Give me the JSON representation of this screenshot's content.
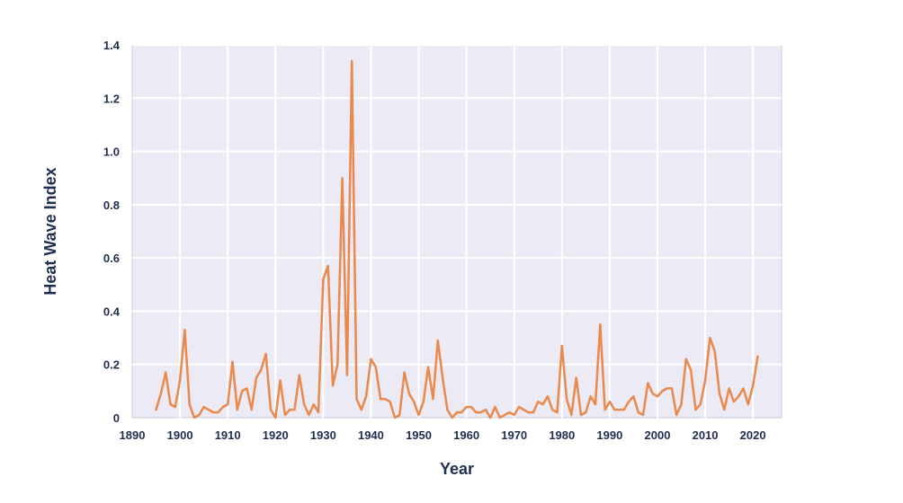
{
  "colors": {
    "plot_background": "#ebeaf5",
    "grid": "#ffffff",
    "plot_border": "#c9c8d6",
    "line": "#e9894c",
    "text": "#1f2d4f"
  },
  "chart_data": {
    "type": "line",
    "title": "",
    "xlabel": "Year",
    "ylabel": "Heat Wave Index",
    "xlim": [
      1890,
      2026
    ],
    "ylim": [
      0,
      1.4
    ],
    "xticks": [
      1890,
      1900,
      1910,
      1920,
      1930,
      1940,
      1950,
      1960,
      1970,
      1980,
      1990,
      2000,
      2010,
      2020
    ],
    "xtick_labels": [
      "1890",
      "1900",
      "1910",
      "1920",
      "1930",
      "1940",
      "1950",
      "1960",
      "1970",
      "1980",
      "1990",
      "2000",
      "2010",
      "2020"
    ],
    "yticks": [
      0,
      0.2,
      0.4,
      0.6,
      0.8,
      1.0,
      1.2,
      1.4
    ],
    "ytick_labels": [
      "0",
      "0.2",
      "0.4",
      "0.6",
      "0.8",
      "1.0",
      "1.2",
      "1.4"
    ],
    "grid": true,
    "series": [
      {
        "x": [
          1895,
          1896,
          1897,
          1898,
          1899,
          1900,
          1901,
          1902,
          1903,
          1904,
          1905,
          1906,
          1907,
          1908,
          1909,
          1910,
          1911,
          1912,
          1913,
          1914,
          1915,
          1916,
          1917,
          1918,
          1919,
          1920,
          1921,
          1922,
          1923,
          1924,
          1925,
          1926,
          1927,
          1928,
          1929,
          1930,
          1931,
          1932,
          1933,
          1934,
          1935,
          1936,
          1937,
          1938,
          1939,
          1940,
          1941,
          1942,
          1943,
          1944,
          1945,
          1946,
          1947,
          1948,
          1949,
          1950,
          1951,
          1952,
          1953,
          1954,
          1955,
          1956,
          1957,
          1958,
          1959,
          1960,
          1961,
          1962,
          1963,
          1964,
          1965,
          1966,
          1967,
          1968,
          1969,
          1970,
          1971,
          1972,
          1973,
          1974,
          1975,
          1976,
          1977,
          1978,
          1979,
          1980,
          1981,
          1982,
          1983,
          1984,
          1985,
          1986,
          1987,
          1988,
          1989,
          1990,
          1991,
          1992,
          1993,
          1994,
          1995,
          1996,
          1997,
          1998,
          1999,
          2000,
          2001,
          2002,
          2003,
          2004,
          2005,
          2006,
          2007,
          2008,
          2009,
          2010,
          2011,
          2012,
          2013,
          2014,
          2015,
          2016,
          2017,
          2018,
          2019,
          2020,
          2021
        ],
        "values": [
          0.03,
          0.09,
          0.17,
          0.05,
          0.04,
          0.14,
          0.33,
          0.05,
          0.0,
          0.01,
          0.04,
          0.03,
          0.02,
          0.02,
          0.04,
          0.05,
          0.21,
          0.03,
          0.1,
          0.11,
          0.03,
          0.15,
          0.18,
          0.24,
          0.03,
          0.0,
          0.14,
          0.01,
          0.03,
          0.03,
          0.16,
          0.05,
          0.01,
          0.05,
          0.02,
          0.52,
          0.57,
          0.12,
          0.2,
          0.9,
          0.16,
          1.34,
          0.07,
          0.03,
          0.08,
          0.22,
          0.19,
          0.07,
          0.07,
          0.06,
          0.0,
          0.01,
          0.17,
          0.09,
          0.06,
          0.01,
          0.06,
          0.19,
          0.07,
          0.29,
          0.15,
          0.03,
          0.0,
          0.02,
          0.02,
          0.04,
          0.04,
          0.02,
          0.02,
          0.03,
          0.0,
          0.04,
          0.0,
          0.01,
          0.02,
          0.01,
          0.04,
          0.03,
          0.02,
          0.02,
          0.06,
          0.05,
          0.08,
          0.03,
          0.02,
          0.27,
          0.07,
          0.01,
          0.15,
          0.01,
          0.02,
          0.08,
          0.05,
          0.35,
          0.03,
          0.06,
          0.03,
          0.03,
          0.03,
          0.06,
          0.08,
          0.02,
          0.01,
          0.13,
          0.09,
          0.08,
          0.1,
          0.11,
          0.11,
          0.01,
          0.05,
          0.22,
          0.18,
          0.03,
          0.05,
          0.14,
          0.3,
          0.25,
          0.09,
          0.03,
          0.11,
          0.06,
          0.08,
          0.11,
          0.05,
          0.12,
          0.23
        ]
      }
    ]
  }
}
